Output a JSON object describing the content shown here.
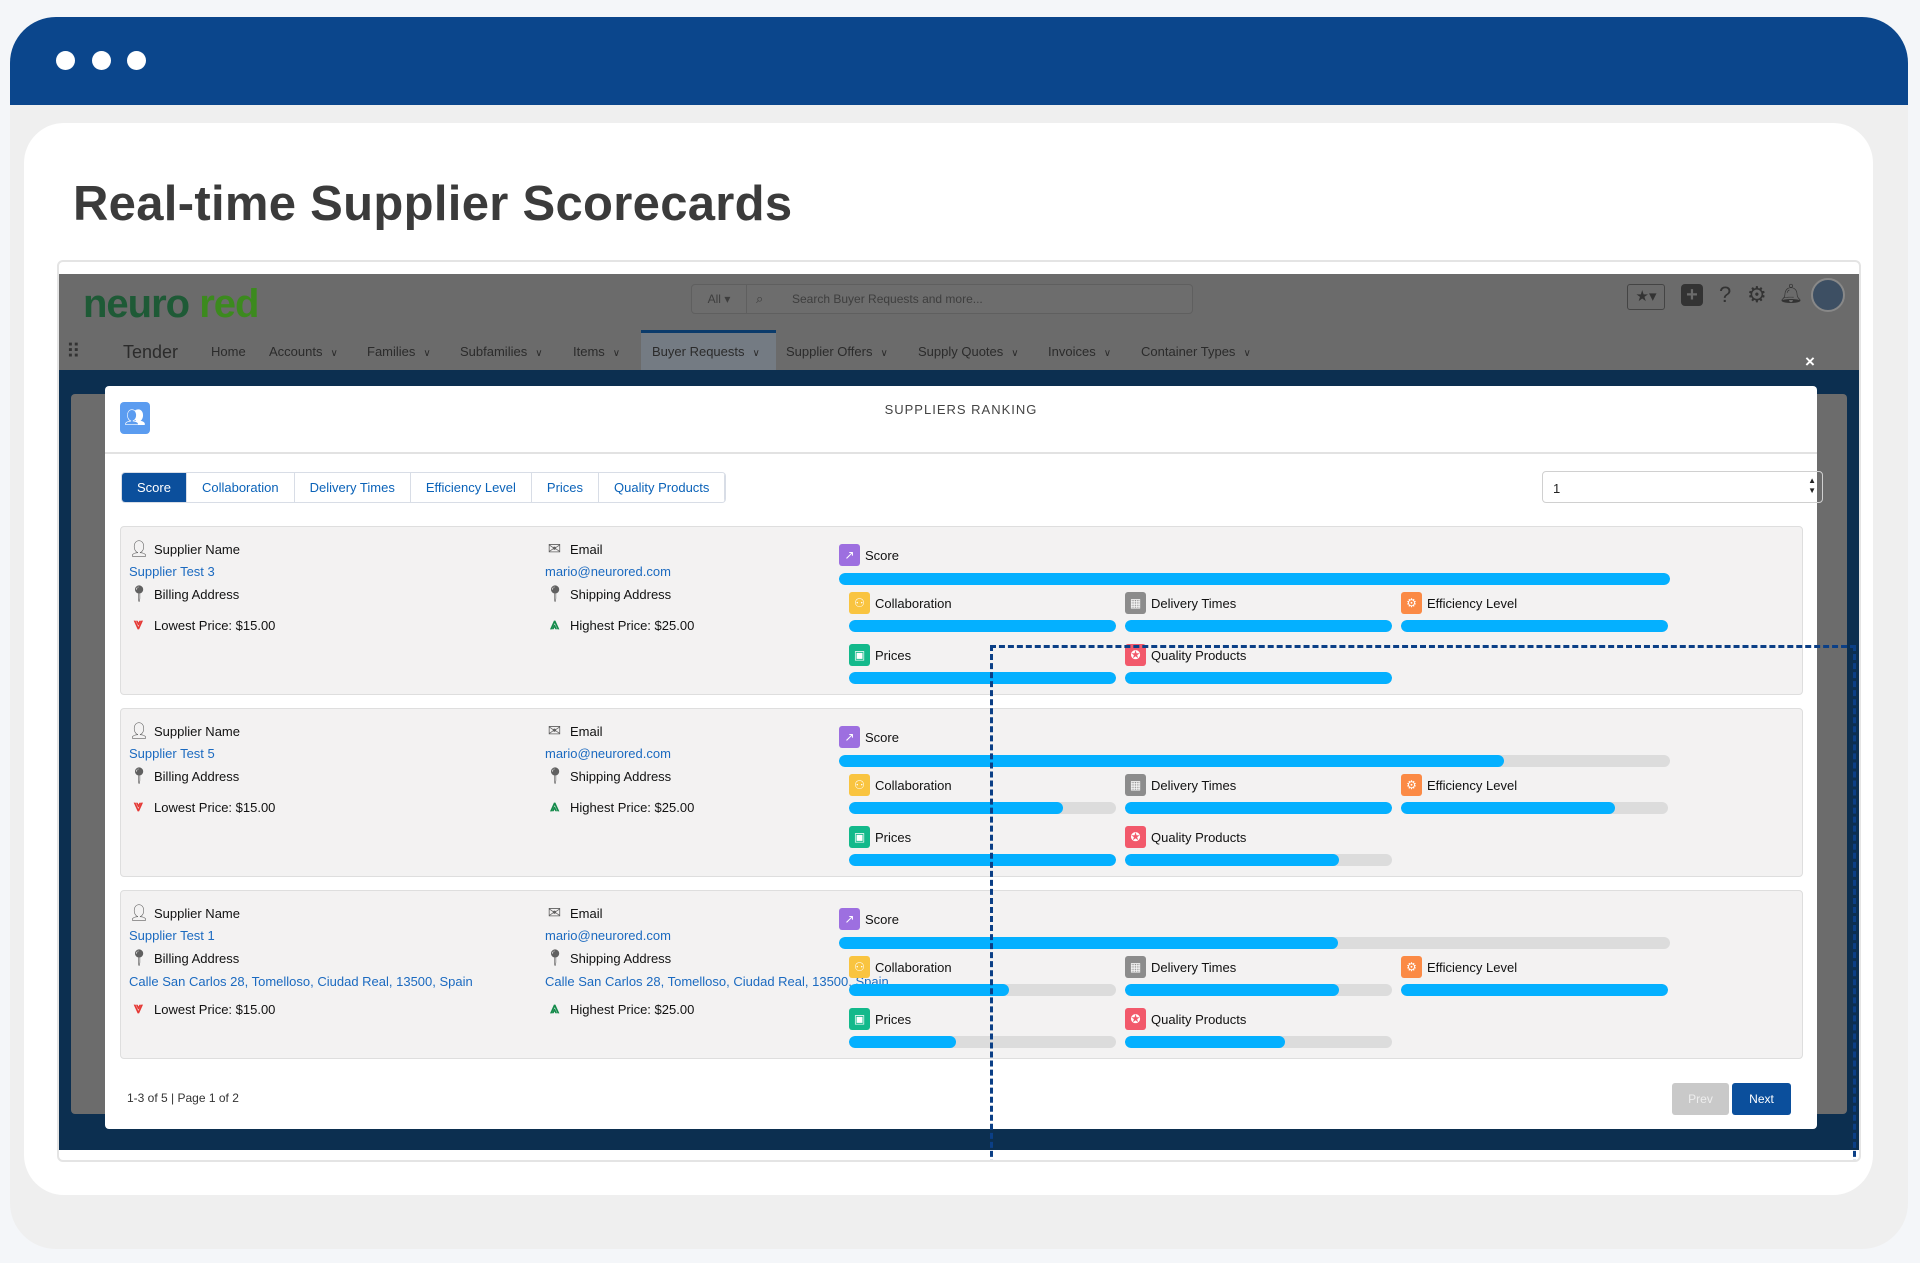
{
  "page_title": "Real-time Supplier Scorecards",
  "colors": {
    "brand": "#0b468c",
    "progress": "#04b0ff",
    "active_tab": "#0b4f9c"
  },
  "app": {
    "logo_a": "neuro",
    "logo_b": " red",
    "search": {
      "scope": "All",
      "placeholder": "Search Buyer Requests and more..."
    },
    "app_name": "Tender",
    "nav": [
      "Home",
      "Accounts",
      "Families",
      "Subfamilies",
      "Items",
      "Buyer Requests",
      "Supplier Offers",
      "Supply Quotes",
      "Invoices",
      "Container Types"
    ],
    "active_nav": "Buyer Requests",
    "header_icons": [
      "favorites-star-icon",
      "add-icon",
      "help-icon",
      "settings-gear-icon",
      "notifications-bell-icon",
      "user-avatar"
    ]
  },
  "modal": {
    "title": "SUPPLIERS RANKING",
    "close": "×",
    "tabs": [
      "Score",
      "Collaboration",
      "Delivery Times",
      "Efficiency Level",
      "Prices",
      "Quality Products"
    ],
    "active_tab": "Score",
    "page_select": "1",
    "labels": {
      "supplier_name": "Supplier Name",
      "email": "Email",
      "billing": "Billing Address",
      "shipping": "Shipping Address"
    },
    "metric_names": {
      "score": "Score",
      "collaboration": "Collaboration",
      "delivery": "Delivery Times",
      "efficiency": "Efficiency Level",
      "prices": "Prices",
      "quality": "Quality Products"
    },
    "suppliers": [
      {
        "name": "Supplier Test 3",
        "email": "mario@neurored.com",
        "billing": "",
        "shipping": "",
        "lowest": "Lowest Price: $15.00",
        "highest": "Highest Price: $25.00",
        "metrics": {
          "score": 1.0,
          "collaboration": 1.0,
          "delivery": 1.0,
          "efficiency": 1.0,
          "prices": 1.0,
          "quality": 1.0
        }
      },
      {
        "name": "Supplier Test 5",
        "email": "mario@neurored.com",
        "billing": "",
        "shipping": "",
        "lowest": "Lowest Price: $15.00",
        "highest": "Highest Price: $25.00",
        "metrics": {
          "score": 0.8,
          "collaboration": 0.8,
          "delivery": 1.0,
          "efficiency": 0.8,
          "prices": 1.0,
          "quality": 0.8
        }
      },
      {
        "name": "Supplier Test 1",
        "email": "mario@neurored.com",
        "billing": "Calle San Carlos 28, Tomelloso, Ciudad Real, 13500, Spain",
        "shipping": "Calle San Carlos 28, Tomelloso, Ciudad Real, 13500, Spain",
        "lowest": "Lowest Price: $15.00",
        "highest": "Highest Price: $25.00",
        "metrics": {
          "score": 0.6,
          "collaboration": 0.6,
          "delivery": 0.8,
          "efficiency": 1.0,
          "prices": 0.4,
          "quality": 0.6
        }
      }
    ],
    "footer": "1-3 of 5 | Page 1 of 2",
    "prev": "Prev",
    "next": "Next"
  }
}
